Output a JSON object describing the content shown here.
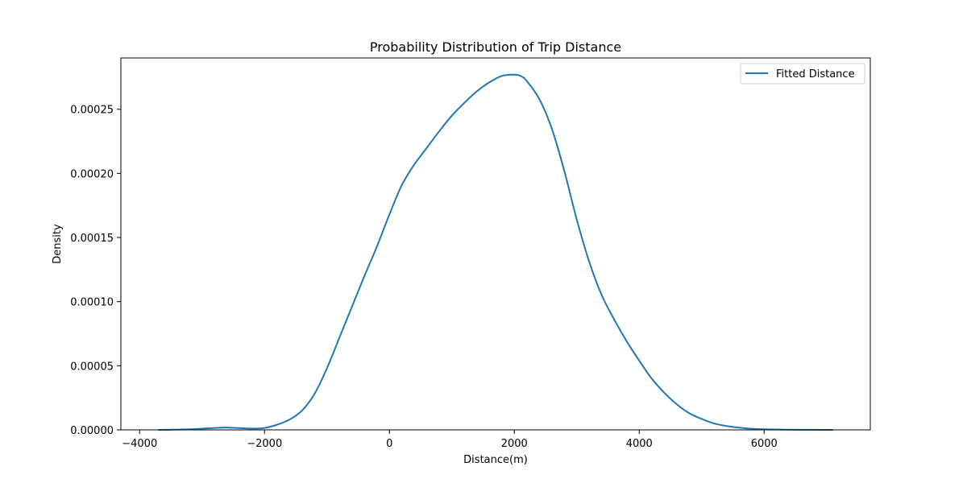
{
  "chart_data": {
    "type": "line",
    "title": "Probability Distribution of Trip Distance",
    "xlabel": "Distance(m)",
    "ylabel": "Density",
    "xlim": [
      -4300,
      7700
    ],
    "ylim": [
      0,
      0.00029
    ],
    "xticks": [
      -4000,
      -2000,
      0,
      2000,
      4000,
      6000
    ],
    "xtick_labels": [
      "−4000",
      "−2000",
      "0",
      "2000",
      "4000",
      "6000"
    ],
    "yticks": [
      0,
      5e-05,
      0.0001,
      0.00015,
      0.0002,
      0.00025
    ],
    "ytick_labels": [
      "0.00000",
      "0.00005",
      "0.00010",
      "0.00015",
      "0.00020",
      "0.00025"
    ],
    "grid": false,
    "legend_position": "top-right",
    "colors": {
      "series": "#1f77b4"
    },
    "series": [
      {
        "name": "Fitted Distance",
        "x": [
          -3700,
          -3200,
          -2800,
          -2600,
          -2200,
          -2000,
          -1800,
          -1600,
          -1400,
          -1200,
          -1000,
          -800,
          -600,
          -400,
          -200,
          0,
          200,
          400,
          600,
          800,
          1000,
          1200,
          1400,
          1600,
          1800,
          2000,
          2100,
          2200,
          2400,
          2600,
          2800,
          3000,
          3200,
          3400,
          3600,
          3800,
          4000,
          4200,
          4400,
          4600,
          4800,
          5000,
          5200,
          5400,
          5600,
          5800,
          6000,
          6200,
          6500,
          7100
        ],
        "y": [
          0.0,
          5e-07,
          1.5e-06,
          1.8e-06,
          1e-06,
          1.5e-06,
          4e-06,
          8e-06,
          1.5e-05,
          2.8e-05,
          4.8e-05,
          7.2e-05,
          9.6e-05,
          0.00012,
          0.000143,
          0.000168,
          0.000191,
          0.000207,
          0.00022,
          0.000233,
          0.000245,
          0.000255,
          0.000264,
          0.000271,
          0.000276,
          0.000277,
          0.000276,
          0.000272,
          0.000258,
          0.000235,
          0.000202,
          0.000164,
          0.000131,
          0.000105,
          8.6e-05,
          6.9e-05,
          5.4e-05,
          4e-05,
          2.9e-05,
          2e-05,
          1.3e-05,
          8.5e-06,
          5e-06,
          3e-06,
          1.7e-06,
          9e-07,
          5e-07,
          3e-07,
          1e-07,
          0.0
        ]
      }
    ]
  }
}
